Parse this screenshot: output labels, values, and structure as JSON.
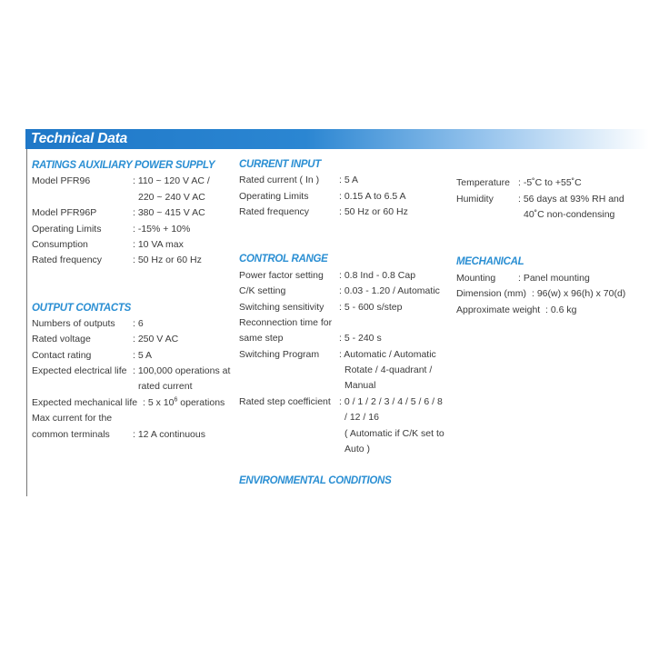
{
  "title": "Technical Data",
  "columns": [
    {
      "sections": [
        {
          "heading": "RATINGS AUXILIARY POWER SUPPLY",
          "rows": [
            {
              "label": [
                "Model PFR96"
              ],
              "value": [
                ": 110 ~ 120 V AC /",
                "220 ~ 240 V AC"
              ]
            },
            {
              "label": [
                "Model PFR96P"
              ],
              "value": [
                ": 380 ~ 415 V AC"
              ]
            },
            {
              "label": [
                "Operating Limits"
              ],
              "value": [
                ": -15% + 10%"
              ]
            },
            {
              "label": [
                "Consumption"
              ],
              "value": [
                ": 10 VA max"
              ]
            },
            {
              "label": [
                "Rated frequency"
              ],
              "value": [
                ": 50 Hz  or  60 Hz"
              ]
            }
          ]
        },
        {
          "heading": "OUTPUT CONTACTS",
          "rows": [
            {
              "label": [
                "Numbers of outputs"
              ],
              "value": [
                ": 6"
              ]
            },
            {
              "label": [
                "Rated voltage"
              ],
              "value": [
                ": 250 V AC"
              ]
            },
            {
              "label": [
                "Contact rating"
              ],
              "value": [
                ": 5 A"
              ]
            },
            {
              "label": [
                "Expected electrical life"
              ],
              "value": [
                ": 100,000 operations at",
                "rated current"
              ]
            },
            {
              "label": [
                "Expected mechanical life"
              ],
              "value": [
                ": 5 x 10^6 operations"
              ]
            },
            {
              "label": [
                "Max current for the",
                "common terminals"
              ],
              "value": [
                "",
                ": 12 A continuous"
              ]
            }
          ]
        }
      ]
    },
    {
      "sections": [
        {
          "heading": "CURRENT INPUT",
          "rows": [
            {
              "label": [
                "Rated current ( In )"
              ],
              "value": [
                ": 5 A"
              ]
            },
            {
              "label": [
                "Operating Limits"
              ],
              "value": [
                ": 0.15 A  to  6.5 A"
              ]
            },
            {
              "label": [
                "Rated frequency"
              ],
              "value": [
                ": 50 Hz  or  60 Hz"
              ]
            }
          ]
        },
        {
          "heading": "CONTROL RANGE",
          "rows": [
            {
              "label": [
                "Power factor setting"
              ],
              "value": [
                ": 0.8 Ind - 0.8 Cap"
              ]
            },
            {
              "label": [
                "C/K setting"
              ],
              "value": [
                ": 0.03 - 1.20 / Automatic"
              ]
            },
            {
              "label": [
                "Switching sensitivity"
              ],
              "value": [
                ": 5 - 600 s/step"
              ]
            },
            {
              "label": [
                "Reconnection time for",
                "same step"
              ],
              "value": [
                "",
                ": 5 - 240 s"
              ]
            },
            {
              "label": [
                "Switching Program"
              ],
              "value": [
                ": Automatic / Automatic",
                "Rotate / 4-quadrant /",
                "Manual"
              ]
            },
            {
              "label": [
                "Rated step coefficient"
              ],
              "value": [
                ": 0 / 1 / 2 / 3 / 4 / 5 / 6 / 8",
                "/ 12 / 16",
                "( Automatic if C/K set to",
                "Auto )"
              ]
            }
          ]
        },
        {
          "heading": "ENVIRONMENTAL CONDITIONS",
          "rows": []
        }
      ]
    },
    {
      "sections": [
        {
          "heading": "",
          "rows": [
            {
              "label": [
                "Temperature"
              ],
              "value": [
                ":  -5˚C to +55˚C"
              ]
            },
            {
              "label": [
                "Humidity"
              ],
              "value": [
                ":  56 days at 93% RH and",
                "40˚C non-condensing"
              ]
            }
          ]
        },
        {
          "heading": "MECHANICAL",
          "rows": [
            {
              "label": [
                "Mounting"
              ],
              "value": [
                ":  Panel mounting"
              ]
            },
            {
              "label": [
                "Dimension (mm)"
              ],
              "value": [
                ":  96(w) x 96(h) x 70(d)"
              ]
            },
            {
              "label": [
                "Approximate weight"
              ],
              "value": [
                ": 0.6 kg"
              ]
            }
          ]
        }
      ]
    }
  ]
}
